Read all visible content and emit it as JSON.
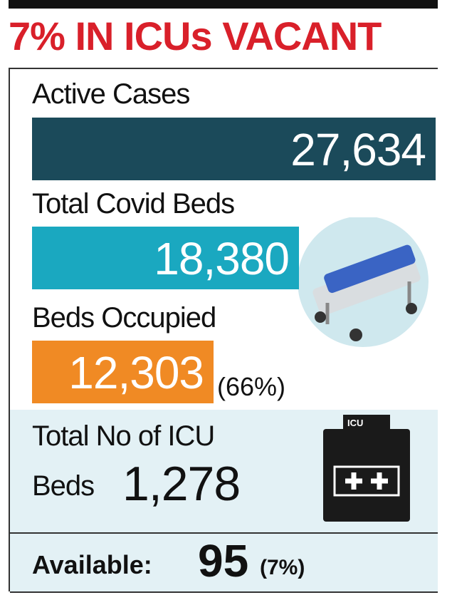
{
  "header": {
    "title": "7% IN ICUs VACANT"
  },
  "stats": [
    {
      "label": "Active Cases",
      "value": "27,634"
    },
    {
      "label": "Total Covid Beds",
      "value": "18,380"
    },
    {
      "label": "Beds Occupied",
      "value": "12,303",
      "note": "(66%)"
    }
  ],
  "icu": {
    "label_line1": "Total No of ICU",
    "label_line2": "Beds",
    "value": "1,278",
    "icon_text": "ICU"
  },
  "available": {
    "label": "Available:",
    "value": "95",
    "note": "(7%)"
  }
}
